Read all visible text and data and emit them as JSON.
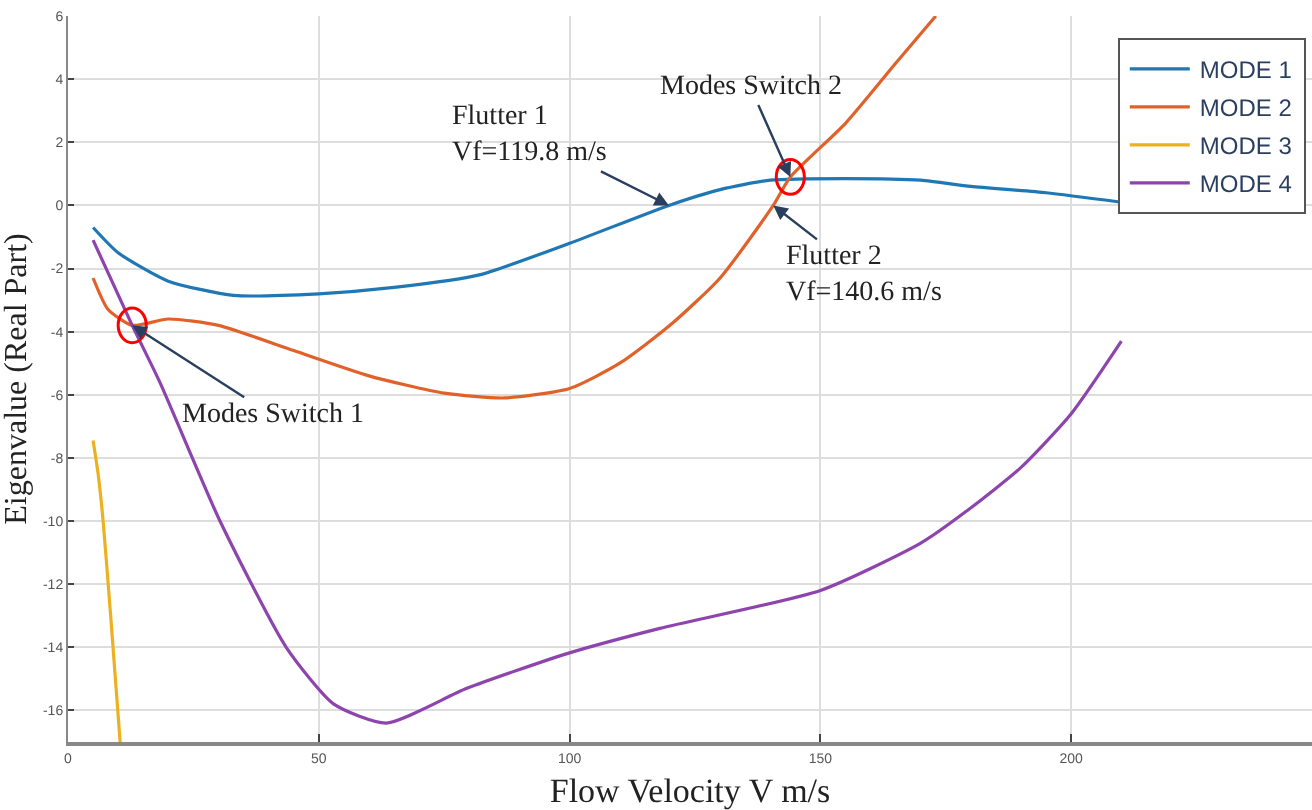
{
  "chart_data": {
    "type": "line",
    "xlabel": "Flow Velocity V m/s",
    "ylabel": "Eigenvalue (Real Part)",
    "xlim": [
      0,
      248
    ],
    "ylim": [
      -17,
      6
    ],
    "xticks": [
      0,
      50,
      100,
      150,
      200
    ],
    "yticks": [
      -16,
      -14,
      -12,
      -10,
      -8,
      -6,
      -4,
      -2,
      0,
      2,
      4,
      6
    ],
    "grid": true,
    "legend": "top right",
    "marker": "none",
    "line_style": "solid",
    "series": [
      {
        "name": "MODE 1",
        "color": "#1f77b4",
        "x": [
          5,
          10,
          20,
          33,
          50,
          65,
          82,
          100,
          119.8,
          130,
          140,
          155,
          170,
          180,
          195,
          210
        ],
        "values": [
          -0.7,
          -1.5,
          -2.4,
          -2.85,
          -2.8,
          -2.6,
          -2.2,
          -1.2,
          0,
          0.5,
          0.8,
          0.85,
          0.8,
          0.6,
          0.4,
          0.1
        ]
      },
      {
        "name": "MODE 2",
        "color": "#e0622a",
        "x": [
          5,
          8,
          12.8,
          20,
          30,
          45,
          60,
          75,
          87,
          100,
          110,
          120,
          130,
          140.6,
          144,
          155,
          165,
          173
        ],
        "values": [
          -2.3,
          -3.3,
          -3.8,
          -3.6,
          -3.8,
          -4.6,
          -5.4,
          -5.95,
          -6.1,
          -5.8,
          -5,
          -3.8,
          -2.3,
          0,
          0.9,
          2.6,
          4.5,
          6
        ]
      },
      {
        "name": "MODE 3",
        "color": "#edb120",
        "x": [
          5,
          6,
          7,
          8.5,
          10.4
        ],
        "values": [
          -7.45,
          -8.5,
          -10,
          -13,
          -17
        ]
      },
      {
        "name": "MODE 4",
        "color": "#8e44ad",
        "x": [
          5,
          12.8,
          18.3,
          30.3,
          43.5,
          53,
          63.5,
          79.5,
          99.5,
          118,
          150,
          170,
          179,
          190,
          200,
          210
        ],
        "values": [
          -1.1,
          -3.8,
          -5.6,
          -10,
          -14,
          -15.8,
          -16.4,
          -15.3,
          -14.2,
          -13.4,
          -12.2,
          -10.7,
          -9.7,
          -8.3,
          -6.6,
          -4.3
        ]
      }
    ],
    "annotations": [
      {
        "text": "Flutter 1\nVf=119.8 m/s",
        "x": 119.8,
        "y": 0
      },
      {
        "text": "Modes Switch 2",
        "x": 144,
        "y": 0.9
      },
      {
        "text": "Flutter 2\nVf=140.6 m/s",
        "x": 140.6,
        "y": 0
      },
      {
        "text": "Modes Switch 1",
        "x": 12.8,
        "y": -3.8
      }
    ]
  }
}
